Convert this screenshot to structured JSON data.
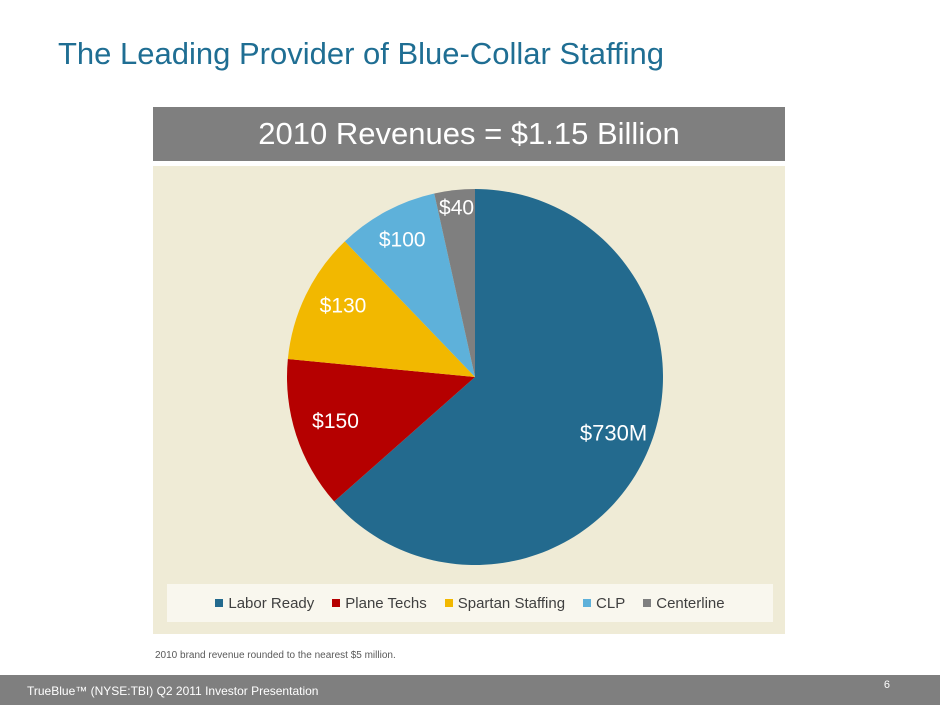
{
  "slide": {
    "title": "The Leading Provider of Blue-Collar Staffing",
    "footnote": "2010 brand revenue rounded to the nearest $5 million.",
    "footer_text": "TrueBlue™ (NYSE:TBI) Q2 2011 Investor Presentation",
    "page_number": "6"
  },
  "chart_data": {
    "type": "pie",
    "title": "2010 Revenues = $1.15 Billion",
    "legend_position": "bottom",
    "start": "12 o'clock, clockwise",
    "slices": [
      {
        "name": "Labor Ready",
        "value": 730,
        "label": "$730M",
        "color": "#236a8e"
      },
      {
        "name": "Plane Techs",
        "value": 150,
        "label": "$150",
        "color": "#b50000"
      },
      {
        "name": "Spartan Staffing",
        "value": 130,
        "label": "$130",
        "color": "#f2b800"
      },
      {
        "name": "CLP",
        "value": 100,
        "label": "$100",
        "color": "#5eb1da"
      },
      {
        "name": "Centerline",
        "value": 40,
        "label": "$40",
        "color": "#7f7f7f"
      }
    ]
  }
}
